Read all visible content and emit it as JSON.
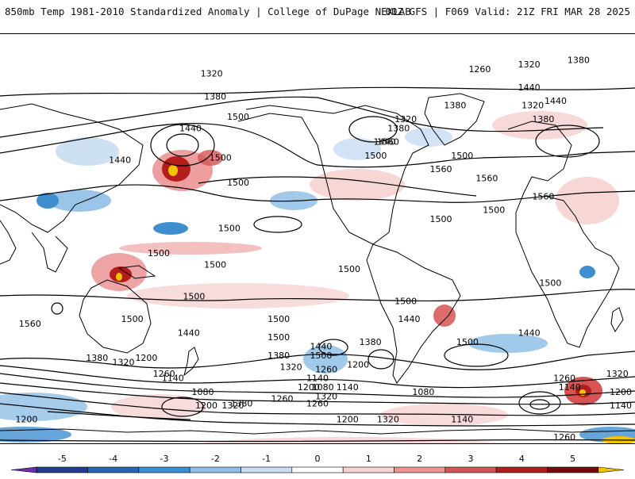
{
  "header": {
    "title": "850mb Temp 1981-2010 Standardized Anomaly | College of DuPage NEXLAB",
    "run_info": "00Z GFS | F069 Valid: 21Z FRI MAR 28 2025"
  },
  "map": {
    "projection": "global-equirectangular",
    "contour_labels": [
      {
        "text": "1380",
        "lon": -2,
        "lat": 78
      },
      {
        "text": "1320",
        "lon": -30,
        "lat": 76
      },
      {
        "text": "1260",
        "lon": -58,
        "lat": 74
      },
      {
        "text": "1320",
        "lon": 150,
        "lat": 72
      },
      {
        "text": "1380",
        "lon": 152,
        "lat": 62
      },
      {
        "text": "1440",
        "lon": -30,
        "lat": 66
      },
      {
        "text": "1380",
        "lon": -72,
        "lat": 58
      },
      {
        "text": "1320",
        "lon": -100,
        "lat": 52
      },
      {
        "text": "1380",
        "lon": -104,
        "lat": 48
      },
      {
        "text": "1440",
        "lon": -112,
        "lat": 42
      },
      {
        "text": "1500",
        "lon": -117,
        "lat": 36
      },
      {
        "text": "1560",
        "lon": -80,
        "lat": 30
      },
      {
        "text": "1440",
        "lon": -15,
        "lat": 60
      },
      {
        "text": "1320",
        "lon": -110,
        "lat": -80
      },
      {
        "text": "1320",
        "lon": -28,
        "lat": 58
      },
      {
        "text": "1380",
        "lon": -22,
        "lat": 52
      },
      {
        "text": "1560",
        "lon": -110,
        "lat": 42
      },
      {
        "text": "1500",
        "lon": -68,
        "lat": 36
      },
      {
        "text": "1440",
        "lon": 98,
        "lat": 34
      },
      {
        "text": "1500",
        "lon": 165,
        "lat": 24
      },
      {
        "text": "1560",
        "lon": -54,
        "lat": 26
      },
      {
        "text": "1560",
        "lon": -22,
        "lat": 18
      },
      {
        "text": "1500",
        "lon": -50,
        "lat": 12
      },
      {
        "text": "1500",
        "lon": -80,
        "lat": 8
      },
      {
        "text": "1500",
        "lon": 120,
        "lat": -7
      },
      {
        "text": "1500",
        "lon": 140,
        "lat": -26
      },
      {
        "text": "1500",
        "lon": -132,
        "lat": -14
      },
      {
        "text": "1500",
        "lon": -18,
        "lat": -20
      },
      {
        "text": "1500",
        "lon": -172,
        "lat": -36
      },
      {
        "text": "1440",
        "lon": -98,
        "lat": -36
      },
      {
        "text": "1500",
        "lon": -65,
        "lat": -46
      },
      {
        "text": "1440",
        "lon": -30,
        "lat": -42
      },
      {
        "text": "1380",
        "lon": -120,
        "lat": -46
      },
      {
        "text": "1560",
        "lon": 47,
        "lat": -38
      },
      {
        "text": "1500",
        "lon": -100,
        "lat": -28
      },
      {
        "text": "1500",
        "lon": -172,
        "lat": -44
      },
      {
        "text": "1440",
        "lon": -148,
        "lat": -48
      },
      {
        "text": "1500",
        "lon": -148,
        "lat": -52
      },
      {
        "text": "1380",
        "lon": -172,
        "lat": -52
      },
      {
        "text": "1320",
        "lon": -165,
        "lat": -57
      },
      {
        "text": "1260",
        "lon": -145,
        "lat": -58
      },
      {
        "text": "1200",
        "lon": -127,
        "lat": -56
      },
      {
        "text": "1140",
        "lon": -150,
        "lat": -62
      },
      {
        "text": "1200",
        "lon": -155,
        "lat": -66
      },
      {
        "text": "1080",
        "lon": -147,
        "lat": -66
      },
      {
        "text": "1140",
        "lon": -133,
        "lat": -66
      },
      {
        "text": "1320",
        "lon": -145,
        "lat": -70
      },
      {
        "text": "1260",
        "lon": -150,
        "lat": -73
      },
      {
        "text": "1200",
        "lon": -133,
        "lat": -80
      },
      {
        "text": "1080",
        "lon": -90,
        "lat": -68
      },
      {
        "text": "1140",
        "lon": -68,
        "lat": -80
      },
      {
        "text": "1260",
        "lon": -10,
        "lat": -62
      },
      {
        "text": "1140",
        "lon": -7,
        "lat": -66
      },
      {
        "text": "1200",
        "lon": 25,
        "lat": -68
      },
      {
        "text": "1320",
        "lon": 20,
        "lat": -60
      },
      {
        "text": "1140",
        "lon": 23,
        "lat": -74
      },
      {
        "text": "1200",
        "lon": 45,
        "lat": -80
      },
      {
        "text": "1260",
        "lon": -170,
        "lat": -71
      },
      {
        "text": "1260",
        "lon": -10,
        "lat": -88
      },
      {
        "text": "1380",
        "lon": 85,
        "lat": -53
      },
      {
        "text": "1320",
        "lon": 100,
        "lat": -55
      },
      {
        "text": "1200",
        "lon": 113,
        "lat": -53
      },
      {
        "text": "1260",
        "lon": 123,
        "lat": -60
      },
      {
        "text": "1140",
        "lon": 128,
        "lat": -62
      },
      {
        "text": "1080",
        "lon": 145,
        "lat": -68
      },
      {
        "text": "1200",
        "lon": 147,
        "lat": -74
      },
      {
        "text": "1320",
        "lon": 162,
        "lat": -74
      },
      {
        "text": "1380",
        "lon": 167,
        "lat": -73
      },
      {
        "text": "1440",
        "lon": 137,
        "lat": -42
      },
      {
        "text": "1500",
        "lon": 105,
        "lat": -36
      },
      {
        "text": "1500",
        "lon": 160,
        "lat": 4
      },
      {
        "text": "1500",
        "lon": 152,
        "lat": -12
      },
      {
        "text": "1500",
        "lon": 155,
        "lat": 35
      },
      {
        "text": "1440",
        "lon": 138,
        "lat": 48
      },
      {
        "text": "1500",
        "lon": 165,
        "lat": 53
      }
    ]
  },
  "colorbar": {
    "ticks": [
      "-5",
      "-4",
      "-3",
      "-2",
      "-1",
      "0",
      "1",
      "2",
      "3",
      "4",
      "5"
    ],
    "colors": [
      "#6a2fb0",
      "#1f3f8a",
      "#2b63b8",
      "#3f8ed0",
      "#8fbfe6",
      "#c9def2",
      "#ffffff",
      "#f6d2d2",
      "#eb9494",
      "#d65454",
      "#b51c1c",
      "#7a0a0a",
      "#f5c400"
    ]
  }
}
